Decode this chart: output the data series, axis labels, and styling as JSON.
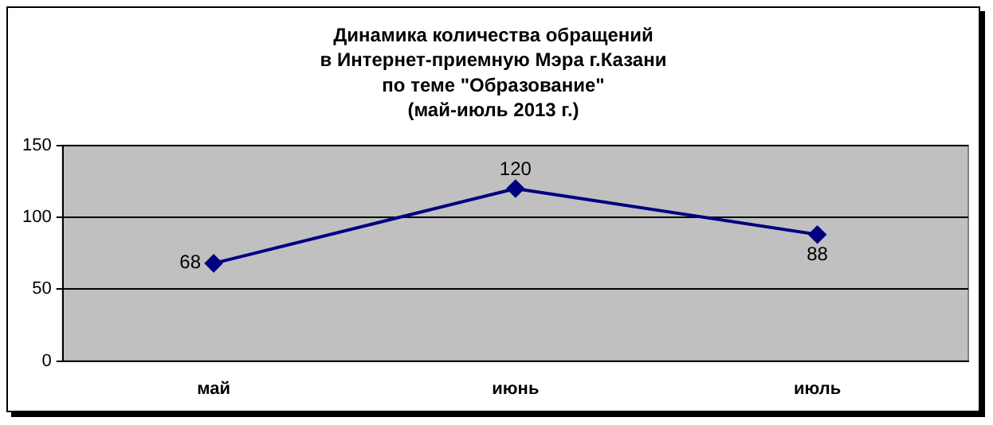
{
  "chart_data": {
    "type": "line",
    "title": "Динамика количества обращений\nв Интернет-приемную Мэра г.Казани\nпо теме \"Образование\"\n(май-июль 2013 г.)",
    "categories": [
      "май",
      "июнь",
      "июль"
    ],
    "series": [
      {
        "color": "#000080",
        "values": [
          68,
          120,
          88
        ]
      }
    ],
    "ylim": [
      0,
      150
    ],
    "yticks": [
      0,
      50,
      100,
      150
    ],
    "grid": "y",
    "marker": "diamond",
    "line_style": "solid",
    "data_labels": true,
    "legend": false
  }
}
